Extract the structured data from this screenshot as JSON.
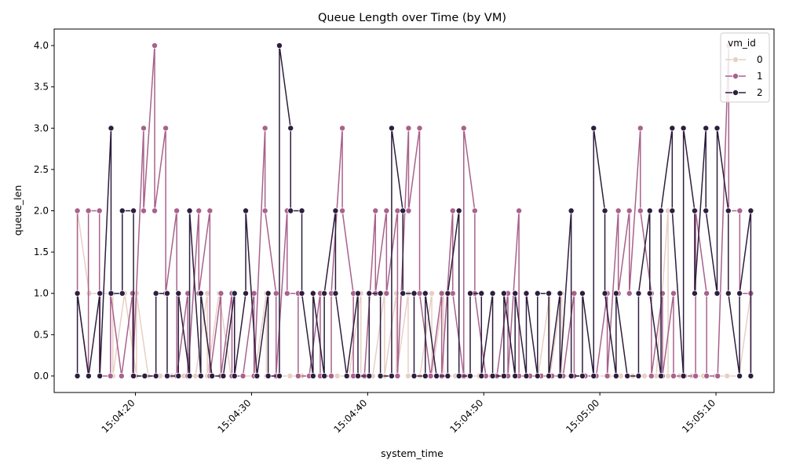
{
  "chart_data": {
    "type": "line",
    "title": "Queue Length over Time (by VM)",
    "xlabel": "system_time",
    "ylabel": "queue_len",
    "x_start": "15:04:15",
    "x_end": "15:05:13",
    "xlim": [
      "15:04:13",
      "15:05:15"
    ],
    "ylim": [
      -0.2,
      4.2
    ],
    "yticks": [
      0.0,
      0.5,
      1.0,
      1.5,
      2.0,
      2.5,
      3.0,
      3.5,
      4.0
    ],
    "xticks": [
      "15:04:20",
      "15:04:30",
      "15:04:40",
      "15:04:50",
      "15:05:00",
      "15:05:10"
    ],
    "grid": false,
    "legend": {
      "title": "vm_id",
      "placement": "top-right"
    },
    "series": [
      {
        "name": "0",
        "color": "#e8cfc5",
        "values": [
          [
            1,
            2
          ],
          [
            1,
            1
          ],
          [
            1,
            1
          ],
          [
            1,
            0
          ],
          [
            1,
            1
          ],
          [
            0,
            1
          ],
          [
            0,
            0
          ],
          [
            0,
            0
          ],
          [
            0,
            0
          ],
          [
            0,
            0
          ],
          [
            0,
            0
          ],
          [
            1,
            0
          ],
          [
            1,
            1
          ],
          [
            0,
            0
          ],
          [
            0,
            0
          ],
          [
            0,
            0
          ],
          [
            1,
            0
          ],
          [
            0,
            0
          ],
          [
            0,
            0
          ],
          [
            0,
            0
          ],
          [
            0,
            0
          ],
          [
            0,
            0
          ],
          [
            0,
            0
          ],
          [
            0,
            0
          ],
          [
            1,
            0
          ],
          [
            0,
            0
          ],
          [
            1,
            0
          ],
          [
            1,
            0
          ],
          [
            1,
            0
          ],
          [
            0,
            0
          ],
          [
            1,
            0
          ],
          [
            1,
            0
          ],
          [
            0,
            0
          ],
          [
            0,
            0
          ],
          [
            0,
            0
          ],
          [
            0,
            0
          ],
          [
            0,
            0
          ],
          [
            0,
            0
          ],
          [
            0,
            0
          ],
          [
            0,
            0
          ],
          [
            1,
            0
          ],
          [
            1,
            0
          ],
          [
            0,
            0
          ],
          [
            0,
            0
          ],
          [
            0,
            0
          ],
          [
            0,
            0
          ],
          [
            0,
            0
          ],
          [
            0,
            0
          ],
          [
            0,
            0
          ],
          [
            0,
            0
          ],
          [
            2,
            0
          ],
          [
            0,
            0
          ],
          [
            0,
            0
          ],
          [
            0,
            0
          ],
          [
            0,
            0
          ],
          [
            0,
            0
          ],
          [
            0,
            0
          ],
          [
            1,
            0
          ]
        ]
      },
      {
        "name": "1",
        "color": "#a8628c",
        "values": [
          [
            2,
            1
          ],
          [
            0,
            2
          ],
          [
            2,
            0
          ],
          [
            0,
            1
          ],
          [
            0,
            0
          ],
          [
            1,
            0
          ],
          [
            3,
            2
          ],
          [
            4,
            2
          ],
          [
            3,
            1
          ],
          [
            2,
            0
          ],
          [
            1,
            0
          ],
          [
            2,
            1
          ],
          [
            2,
            0
          ],
          [
            1,
            0
          ],
          [
            1,
            0
          ],
          [
            0,
            0
          ],
          [
            1,
            0
          ],
          [
            3,
            2
          ],
          [
            1,
            0
          ],
          [
            2,
            1
          ],
          [
            1,
            0
          ],
          [
            0,
            0
          ],
          [
            1,
            0
          ],
          [
            0,
            1
          ],
          [
            3,
            2
          ],
          [
            1,
            0
          ],
          [
            0,
            0
          ],
          [
            2,
            1
          ],
          [
            2,
            1
          ],
          [
            2,
            0
          ],
          [
            3,
            2
          ],
          [
            3,
            1
          ],
          [
            0,
            0
          ],
          [
            1,
            0
          ],
          [
            2,
            1
          ],
          [
            0,
            3
          ],
          [
            2,
            1
          ],
          [
            0,
            0
          ],
          [
            0,
            0
          ],
          [
            1,
            0
          ],
          [
            2,
            0
          ],
          [
            0,
            0
          ],
          [
            0,
            0
          ],
          [
            0,
            0
          ],
          [
            0,
            0
          ],
          [
            1,
            0
          ],
          [
            0,
            0
          ],
          [
            0,
            0
          ],
          [
            1,
            0
          ],
          [
            2,
            1
          ],
          [
            2,
            1
          ],
          [
            3,
            2
          ],
          [
            1,
            0
          ],
          [
            1,
            0
          ],
          [
            1,
            0
          ],
          [
            0,
            0
          ],
          [
            0,
            2
          ],
          [
            1,
            0
          ],
          [
            0,
            0
          ],
          [
            4,
            2
          ],
          [
            2,
            1
          ],
          [
            1,
            0
          ]
        ]
      },
      {
        "name": "2",
        "color": "#2d1e3e",
        "values": [
          [
            0,
            1
          ],
          [
            0,
            0
          ],
          [
            1,
            0
          ],
          [
            3,
            1
          ],
          [
            1,
            2
          ],
          [
            2,
            0
          ],
          [
            0,
            0
          ],
          [
            0,
            1
          ],
          [
            1,
            0
          ],
          [
            0,
            1
          ],
          [
            0,
            2
          ],
          [
            0,
            1
          ],
          [
            0,
            0
          ],
          [
            0,
            0
          ],
          [
            1,
            0
          ],
          [
            1,
            2
          ],
          [
            0,
            0
          ],
          [
            1,
            0
          ],
          [
            0,
            4
          ],
          [
            3,
            2
          ],
          [
            2,
            1
          ],
          [
            0,
            1
          ],
          [
            0,
            1
          ],
          [
            2,
            1
          ],
          [
            0,
            0
          ],
          [
            1,
            0
          ],
          [
            0,
            1
          ],
          [
            1,
            0
          ],
          [
            0,
            3
          ],
          [
            2,
            1
          ],
          [
            1,
            0
          ],
          [
            0,
            1
          ],
          [
            0,
            0
          ],
          [
            0,
            1
          ],
          [
            2,
            0
          ],
          [
            0,
            1
          ],
          [
            1,
            0
          ],
          [
            1,
            0
          ],
          [
            0,
            1
          ],
          [
            0,
            1
          ],
          [
            0,
            1
          ],
          [
            0,
            1
          ],
          [
            1,
            0
          ],
          [
            1,
            0
          ],
          [
            2,
            0
          ],
          [
            0,
            1
          ],
          [
            0,
            3
          ],
          [
            2,
            1
          ],
          [
            0,
            1
          ],
          [
            0,
            0
          ],
          [
            0,
            1
          ],
          [
            2,
            1
          ],
          [
            0,
            2
          ],
          [
            3,
            2
          ],
          [
            0,
            3
          ],
          [
            2,
            1
          ],
          [
            3,
            2
          ],
          [
            1,
            3
          ],
          [
            2,
            1
          ],
          [
            0,
            1
          ],
          [
            2,
            0
          ]
        ]
      }
    ]
  }
}
